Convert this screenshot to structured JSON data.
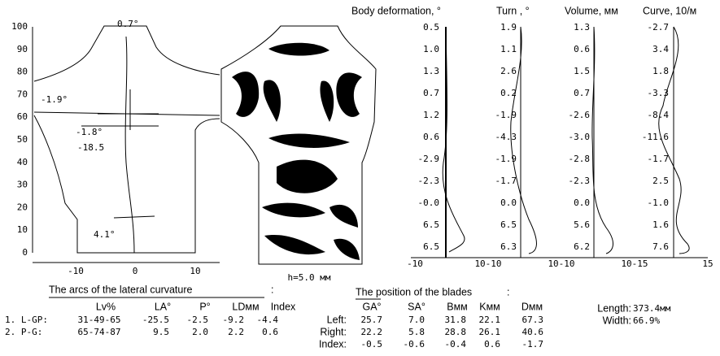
{
  "left_plot": {
    "y_labels": [
      "100",
      "90",
      "80",
      "70",
      "60",
      "50",
      "40",
      "30",
      "20",
      "10",
      "0"
    ],
    "x_labels": [
      "-10",
      "0",
      "10"
    ],
    "annotations": [
      "0.7°",
      "-1.9°",
      "-1.8°",
      "-18.5",
      "4.1°"
    ]
  },
  "zebra": {
    "caption": "h=5.0 мм"
  },
  "profiles": {
    "headers": [
      "Body deformation, °",
      "Turn , °",
      "Volume, мм",
      "Curve, 10/м"
    ],
    "columns": [
      [
        "0.5",
        "1.0",
        "1.3",
        "0.7",
        "1.2",
        "0.6",
        "-2.9",
        "-2.3",
        "-0.0",
        "6.5",
        "6.5"
      ],
      [
        "1.9",
        "1.1",
        "2.6",
        "0.2",
        "-1.9",
        "-4.3",
        "-1.9",
        "-1.7",
        "0.0",
        "6.5",
        "6.3"
      ],
      [
        "1.3",
        "0.6",
        "1.5",
        "0.7",
        "-2.6",
        "-3.0",
        "-2.8",
        "-2.3",
        "0.0",
        "5.6",
        "6.2"
      ],
      [
        "-2.7",
        "3.4",
        "1.8",
        "-3.3",
        "-8.4",
        "-11.6",
        "-1.7",
        "2.5",
        "-1.0",
        "1.6",
        "7.6"
      ]
    ],
    "x_labels": [
      "-10",
      "10-10",
      "10-10",
      "10-15",
      "15"
    ]
  },
  "arcs": {
    "title": "The arcs of the lateral curvature",
    "colon": ":",
    "headers": [
      "Lv%",
      "LA°",
      "P°",
      "LDмм",
      "Index"
    ],
    "rows": [
      {
        "label": "1. L-GP:",
        "values": [
          "31-49-65",
          "-25.5",
          "-2.5",
          "-9.2",
          "-4.4"
        ]
      },
      {
        "label": "2. P-G:",
        "values": [
          "65-74-87",
          "9.5",
          "2.0",
          "2.2",
          "0.6"
        ]
      }
    ]
  },
  "blades": {
    "title": "The position of the blades",
    "colon": ":",
    "headers": [
      "GA°",
      "SA°",
      "Bмм",
      "Kмм",
      "Dмм"
    ],
    "rows": [
      {
        "label": "Left:",
        "values": [
          "25.7",
          "7.0",
          "31.8",
          "22.1",
          "67.3"
        ]
      },
      {
        "label": "Right:",
        "values": [
          "22.2",
          "5.8",
          "28.8",
          "26.1",
          "40.6"
        ]
      },
      {
        "label": "Index:",
        "values": [
          "-0.5",
          "-0.6",
          "-0.4",
          "0.6",
          "-1.7"
        ]
      }
    ]
  },
  "summary": [
    {
      "label": "Length:",
      "value": "373.4мм"
    },
    {
      "label": "Width:",
      "value": "66.9%"
    }
  ]
}
